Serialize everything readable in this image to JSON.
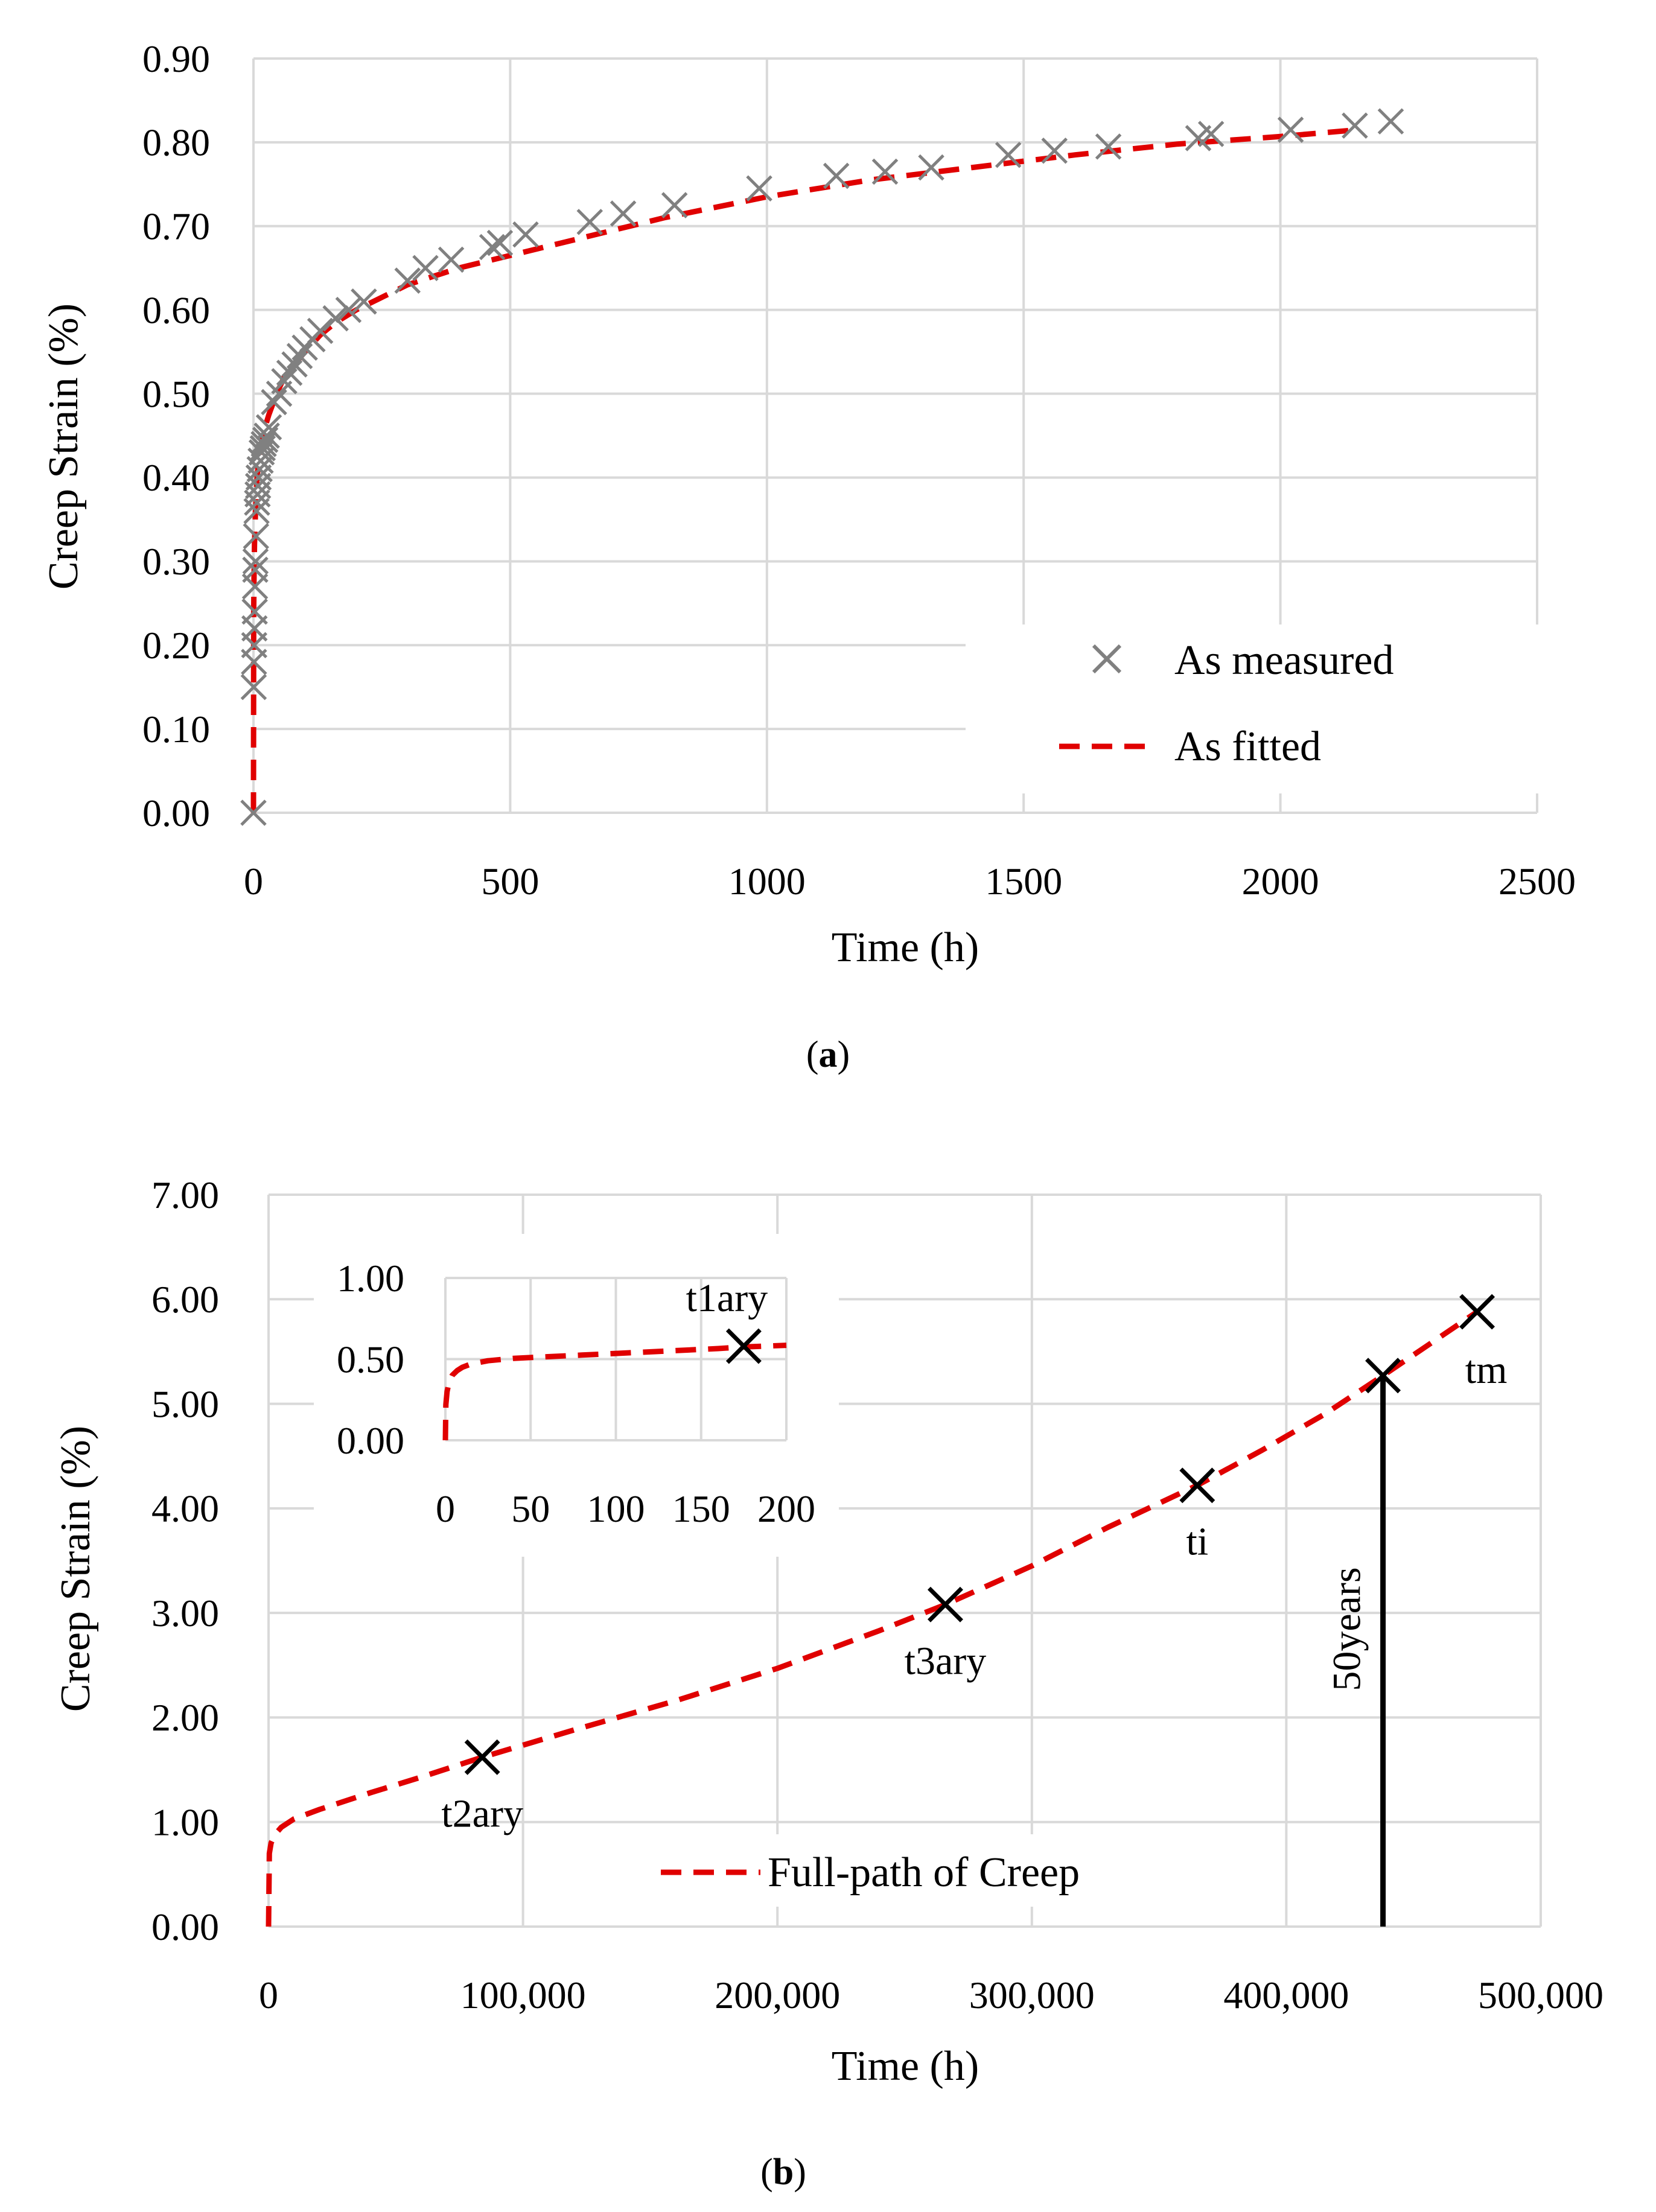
{
  "chart_data": [
    {
      "panel": "a",
      "caption": {
        "open": "(",
        "letter": "a",
        "close": ")"
      },
      "type": "scatter",
      "xlabel": "Time (h)",
      "ylabel": "Creep Strain (%)",
      "xlim": [
        0,
        2500
      ],
      "ylim": [
        0,
        0.9
      ],
      "xticks": [
        "0",
        "500",
        "1000",
        "1500",
        "2000",
        "2500"
      ],
      "yticks": [
        "0.00",
        "0.10",
        "0.20",
        "0.30",
        "0.40",
        "0.50",
        "0.60",
        "0.70",
        "0.80",
        "0.90"
      ],
      "legend_position": "bottom-right",
      "series": [
        {
          "name": "As measured",
          "kind": "scatter-x",
          "color": "#808080",
          "x": [
            0,
            0.5,
            1,
            1.5,
            2,
            2.5,
            3,
            3.5,
            4,
            5,
            6,
            7,
            8,
            9,
            10,
            12,
            14,
            16,
            18,
            20,
            23,
            26,
            30,
            40,
            50,
            60,
            70,
            80,
            90,
            100,
            115,
            130,
            160,
            185,
            215,
            300,
            335,
            385,
            465,
            480,
            530,
            655,
            720,
            820,
            985,
            1135,
            1230,
            1320,
            1470,
            1560,
            1665,
            1840,
            1865,
            2020,
            2145,
            2215
          ],
          "y": [
            0.0,
            0.15,
            0.18,
            0.2,
            0.22,
            0.24,
            0.27,
            0.29,
            0.3,
            0.33,
            0.36,
            0.37,
            0.38,
            0.39,
            0.4,
            0.41,
            0.42,
            0.43,
            0.435,
            0.44,
            0.445,
            0.45,
            0.46,
            0.49,
            0.5,
            0.515,
            0.525,
            0.535,
            0.545,
            0.555,
            0.565,
            0.575,
            0.59,
            0.6,
            0.61,
            0.635,
            0.65,
            0.66,
            0.675,
            0.68,
            0.69,
            0.705,
            0.715,
            0.725,
            0.745,
            0.76,
            0.765,
            0.77,
            0.785,
            0.79,
            0.795,
            0.805,
            0.81,
            0.815,
            0.82,
            0.825
          ]
        },
        {
          "name": "As fitted",
          "kind": "dashed-line",
          "color": "#e00000",
          "x": [
            0,
            0.5,
            1,
            2,
            4,
            7,
            10,
            15,
            20,
            30,
            45,
            60,
            80,
            100,
            130,
            160,
            200,
            250,
            300,
            400,
            500,
            600,
            700,
            800,
            1000,
            1200,
            1400,
            1600,
            1800,
            2000,
            2150
          ],
          "y": [
            0.0,
            0.24,
            0.28,
            0.32,
            0.36,
            0.4,
            0.42,
            0.44,
            0.455,
            0.475,
            0.5,
            0.52,
            0.535,
            0.55,
            0.57,
            0.585,
            0.6,
            0.615,
            0.63,
            0.65,
            0.665,
            0.68,
            0.695,
            0.71,
            0.735,
            0.755,
            0.77,
            0.785,
            0.798,
            0.807,
            0.815
          ]
        }
      ]
    },
    {
      "panel": "b",
      "caption": {
        "open": "(",
        "letter": "b",
        "close": ")"
      },
      "type": "line",
      "xlabel": "Time (h)",
      "ylabel": "Creep Strain (%)",
      "xlim": [
        0,
        500000
      ],
      "ylim": [
        0,
        7
      ],
      "xticks": [
        "0",
        "100,000",
        "200,000",
        "300,000",
        "400,000",
        "500,000"
      ],
      "yticks": [
        "0.00",
        "1.00",
        "2.00",
        "3.00",
        "4.00",
        "5.00",
        "6.00",
        "7.00"
      ],
      "legend_position": "bottom-center",
      "series": [
        {
          "name": "Full-path of Creep",
          "kind": "dashed-line",
          "color": "#e00000",
          "x": [
            0,
            300,
            1000,
            2500,
            5000,
            10000,
            20000,
            40000,
            60000,
            84000,
            120000,
            160000,
            200000,
            240000,
            266000,
            300000,
            330000,
            365000,
            390000,
            415000,
            438000,
            455000,
            475000
          ],
          "y": [
            0.0,
            0.7,
            0.8,
            0.88,
            0.95,
            1.03,
            1.12,
            1.28,
            1.43,
            1.62,
            1.88,
            2.16,
            2.47,
            2.83,
            3.08,
            3.45,
            3.82,
            4.22,
            4.55,
            4.9,
            5.27,
            5.55,
            5.88
          ]
        }
      ],
      "markers": [
        {
          "label": "t2ary",
          "x": 84000,
          "y": 1.62,
          "label_side": "below"
        },
        {
          "label": "t3ary",
          "x": 266000,
          "y": 3.08,
          "label_side": "below"
        },
        {
          "label": "ti",
          "x": 365000,
          "y": 4.22,
          "label_side": "below"
        },
        {
          "label": "tm",
          "x": 475000,
          "y": 5.88,
          "label_side": "below-right"
        }
      ],
      "reference_line": {
        "label": "50years",
        "x": 438000,
        "y_top": 5.27,
        "color": "#000000"
      },
      "reference_marker": {
        "x": 438000,
        "y": 5.27
      },
      "inset": {
        "xlim": [
          0,
          200
        ],
        "ylim": [
          0,
          1
        ],
        "xticks": [
          "0",
          "50",
          "100",
          "150",
          "200"
        ],
        "yticks": [
          "0.00",
          "0.50",
          "1.00"
        ],
        "series": {
          "x": [
            0,
            0.3,
            1,
            2,
            4,
            7,
            10,
            15,
            25,
            40,
            60,
            80,
            100,
            130,
            160,
            175,
            200
          ],
          "y": [
            0.0,
            0.22,
            0.3,
            0.35,
            0.4,
            0.43,
            0.45,
            0.47,
            0.49,
            0.505,
            0.515,
            0.525,
            0.535,
            0.55,
            0.565,
            0.575,
            0.585
          ]
        },
        "marker": {
          "label": "t1ary",
          "x": 175,
          "y": 0.58,
          "label_side": "above"
        }
      }
    }
  ]
}
